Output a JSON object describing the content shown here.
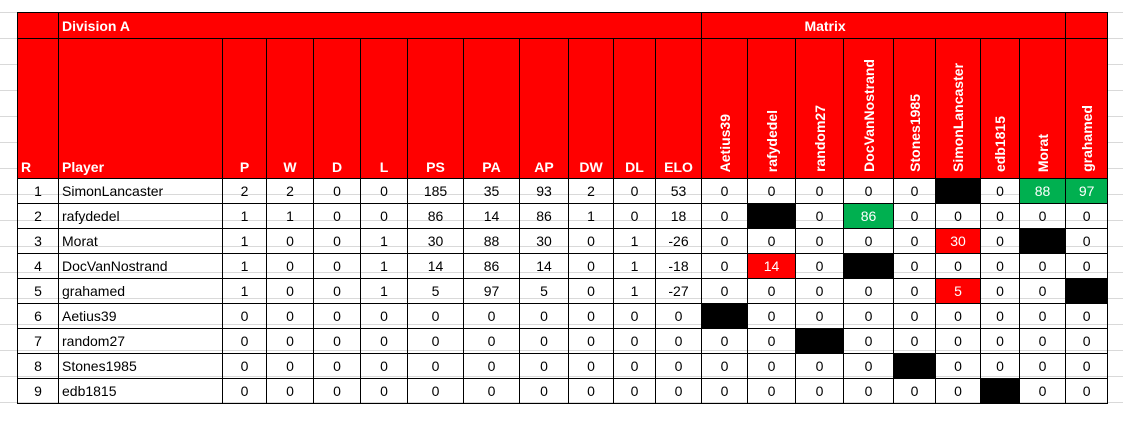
{
  "header": {
    "division": "Division A",
    "matrix": "Matrix"
  },
  "columns": [
    "R",
    "Player",
    "P",
    "W",
    "D",
    "L",
    "PS",
    "PA",
    "AP",
    "DW",
    "DL",
    "ELO"
  ],
  "matrix_columns": [
    "Aetius39",
    "rafydedel",
    "random27",
    "DocVanNostrand",
    "Stones1985",
    "SimonLancaster",
    "edb1815",
    "Morat",
    "grahamed"
  ],
  "blocked_fill": "#000000",
  "rows": [
    {
      "cells": [
        1,
        "SimonLancaster",
        2,
        2,
        0,
        0,
        185,
        35,
        93,
        2,
        0,
        53
      ],
      "matrix": [
        0,
        0,
        0,
        0,
        0,
        null,
        0,
        {
          "value": 88,
          "fill": "#00b050"
        },
        {
          "value": 97,
          "fill": "#00b050"
        }
      ]
    },
    {
      "cells": [
        2,
        "rafydedel",
        1,
        1,
        0,
        0,
        86,
        14,
        86,
        1,
        0,
        18
      ],
      "matrix": [
        0,
        null,
        0,
        {
          "value": 86,
          "fill": "#00b050"
        },
        0,
        0,
        0,
        0,
        0
      ]
    },
    {
      "cells": [
        3,
        "Morat",
        1,
        0,
        0,
        1,
        30,
        88,
        30,
        0,
        1,
        -26
      ],
      "matrix": [
        0,
        0,
        0,
        0,
        0,
        {
          "value": 30,
          "fill": "#ff0000"
        },
        0,
        null,
        0
      ]
    },
    {
      "cells": [
        4,
        "DocVanNostrand",
        1,
        0,
        0,
        1,
        14,
        86,
        14,
        0,
        1,
        -18
      ],
      "matrix": [
        0,
        {
          "value": 14,
          "fill": "#ff0000"
        },
        0,
        null,
        0,
        0,
        0,
        0,
        0
      ]
    },
    {
      "cells": [
        5,
        "grahamed",
        1,
        0,
        0,
        1,
        5,
        97,
        5,
        0,
        1,
        -27
      ],
      "matrix": [
        0,
        0,
        0,
        0,
        0,
        {
          "value": 5,
          "fill": "#ff0000"
        },
        0,
        0,
        null
      ]
    },
    {
      "cells": [
        6,
        "Aetius39",
        0,
        0,
        0,
        0,
        0,
        0,
        0,
        0,
        0,
        0
      ],
      "matrix": [
        null,
        0,
        0,
        0,
        0,
        0,
        0,
        0,
        0
      ]
    },
    {
      "cells": [
        7,
        "random27",
        0,
        0,
        0,
        0,
        0,
        0,
        0,
        0,
        0,
        0
      ],
      "matrix": [
        0,
        0,
        null,
        0,
        0,
        0,
        0,
        0,
        0
      ]
    },
    {
      "cells": [
        8,
        "Stones1985",
        0,
        0,
        0,
        0,
        0,
        0,
        0,
        0,
        0,
        0
      ],
      "matrix": [
        0,
        0,
        0,
        0,
        null,
        0,
        0,
        0,
        0
      ]
    },
    {
      "cells": [
        9,
        "edb1815",
        0,
        0,
        0,
        0,
        0,
        0,
        0,
        0,
        0,
        0
      ],
      "matrix": [
        0,
        0,
        0,
        0,
        0,
        0,
        null,
        0,
        0
      ]
    }
  ]
}
